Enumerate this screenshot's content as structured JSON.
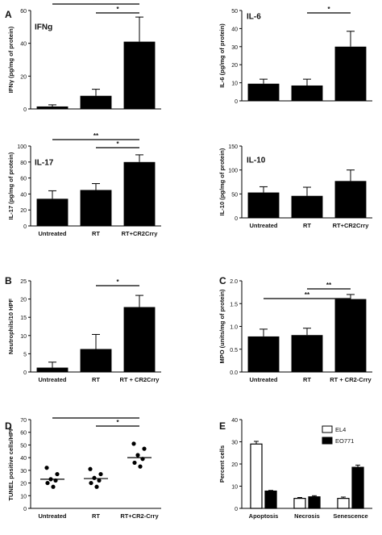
{
  "chart_data": [
    {
      "panel": "A",
      "type": "bar",
      "title": "IFNg",
      "ylabel": "IFNγ (pg/mg of protein)",
      "categories": [
        "",
        "",
        ""
      ],
      "values": [
        1.5,
        8,
        41
      ],
      "errors": [
        1,
        4,
        15
      ],
      "ylim": [
        0,
        60
      ],
      "yticks": [
        "0",
        "20",
        "40",
        "60"
      ],
      "significance": [
        {
          "from": 0,
          "to": 2,
          "label": "**"
        },
        {
          "from": 1,
          "to": 2,
          "label": "*"
        }
      ]
    },
    {
      "panel": "",
      "type": "bar",
      "title": "IL-6",
      "ylabel": "IL-6 (pg/mg of protein)",
      "categories": [
        "",
        "",
        ""
      ],
      "values": [
        9.5,
        8.5,
        30
      ],
      "errors": [
        2.5,
        3.5,
        8.5
      ],
      "ylim": [
        0,
        50
      ],
      "yticks": [
        "0",
        "10",
        "20",
        "30",
        "40",
        "50"
      ],
      "significance": [
        {
          "from": 1,
          "to": 2,
          "label": "*"
        }
      ]
    },
    {
      "panel": "",
      "type": "bar",
      "title": "IL-17",
      "ylabel": "IL-17 (pg/mg of protein)",
      "categories": [
        "Untreated",
        "RT",
        "RT+CR2Crry"
      ],
      "values": [
        34,
        45,
        80
      ],
      "errors": [
        10,
        8,
        9
      ],
      "ylim": [
        0,
        100
      ],
      "yticks": [
        "0",
        "20",
        "40",
        "60",
        "80",
        "100"
      ],
      "significance": [
        {
          "from": 0,
          "to": 2,
          "label": "**"
        },
        {
          "from": 1,
          "to": 2,
          "label": "*"
        }
      ]
    },
    {
      "panel": "",
      "type": "bar",
      "title": "IL-10",
      "ylabel": "IL-10 (pg/mg of protein)",
      "categories": [
        "Untreated",
        "RT",
        "RT+CR2Crry"
      ],
      "values": [
        53,
        46,
        77
      ],
      "errors": [
        12,
        18,
        23
      ],
      "ylim": [
        0,
        150
      ],
      "yticks": [
        "0",
        "50",
        "100",
        "150"
      ],
      "significance": []
    },
    {
      "panel": "B",
      "type": "bar",
      "title": "",
      "ylabel": "Neutrophils/10 HPF",
      "categories": [
        "Untreated",
        "RT",
        "RT + CR2Crry"
      ],
      "values": [
        1.2,
        6.3,
        17.8
      ],
      "errors": [
        1.5,
        4,
        3.2
      ],
      "ylim": [
        0,
        25
      ],
      "yticks": [
        "0",
        "5",
        "10",
        "15",
        "20",
        "25"
      ],
      "significance": [
        {
          "from": 1,
          "to": 2,
          "label": "*"
        }
      ]
    },
    {
      "panel": "C",
      "type": "bar",
      "title": "",
      "ylabel": "MPO (units/mg of protein)",
      "categories": [
        "Untreated",
        "RT",
        "RT + CR2-Crry"
      ],
      "values": [
        0.78,
        0.81,
        1.6
      ],
      "errors": [
        0.16,
        0.15,
        0.1
      ],
      "ylim": [
        0,
        2.0
      ],
      "yticks": [
        "0.0",
        "0.5",
        "1.0",
        "1.5",
        "2.0"
      ],
      "significance": [
        {
          "from": 1,
          "to": 2,
          "label": "**"
        },
        {
          "from": 0,
          "to": 2,
          "label": "**"
        }
      ]
    },
    {
      "panel": "D",
      "type": "scatter",
      "title": "",
      "ylabel": "TUNEL positive cells/HPF",
      "categories": [
        "Untreated",
        "RT",
        "RT+CR2-Crry"
      ],
      "points": [
        [
          32,
          27,
          23,
          22,
          20,
          17
        ],
        [
          31,
          27,
          24,
          22,
          20,
          17
        ],
        [
          51,
          47,
          42,
          39,
          36,
          33
        ]
      ],
      "medians": [
        23,
        23.5,
        40
      ],
      "ylim": [
        0,
        70
      ],
      "yticks": [
        "0",
        "10",
        "20",
        "30",
        "40",
        "50",
        "60",
        "70"
      ],
      "significance": [
        {
          "from": 0,
          "to": 2,
          "label": ""
        },
        {
          "from": 1,
          "to": 2,
          "label": "*"
        }
      ]
    },
    {
      "panel": "E",
      "type": "bar",
      "title": "",
      "ylabel": "Percent cells",
      "categories": [
        "Apoptosis",
        "Necrosis",
        "Senescence"
      ],
      "series": [
        {
          "name": "EL4",
          "values": [
            29,
            4.5,
            4.5
          ],
          "errors": [
            1.2,
            0.4,
            0.6
          ],
          "fill": "#ffffff"
        },
        {
          "name": "EO771",
          "values": [
            7.8,
            5.2,
            18.5
          ],
          "errors": [
            0.3,
            0.5,
            1.0
          ],
          "fill": "#000000"
        }
      ],
      "ylim": [
        0,
        40
      ],
      "yticks": [
        "0",
        "10",
        "20",
        "30",
        "40"
      ],
      "legend": "top-right",
      "significance": []
    }
  ]
}
